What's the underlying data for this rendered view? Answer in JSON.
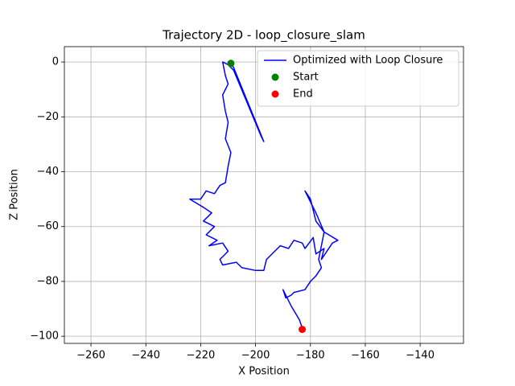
{
  "chart_data": {
    "type": "line",
    "title": "Trajectory 2D - loop_closure_slam",
    "x_label": "X Position",
    "y_label": "Z Position",
    "xlim": [
      -269.7,
      -124.2
    ],
    "ylim": [
      -102.6,
      5.6
    ],
    "xticks": [
      {
        "value": -260,
        "label": "−260"
      },
      {
        "value": -240,
        "label": "−240"
      },
      {
        "value": -220,
        "label": "−220"
      },
      {
        "value": -200,
        "label": "−200"
      },
      {
        "value": -180,
        "label": "−180"
      },
      {
        "value": -160,
        "label": "−160"
      },
      {
        "value": -140,
        "label": "−140"
      }
    ],
    "yticks": [
      0,
      {
        "value": -20,
        "label": "−20"
      },
      {
        "value": -40,
        "label": "−40"
      },
      {
        "value": -60,
        "label": "−60"
      },
      {
        "value": -80,
        "label": "−80"
      },
      {
        "value": -100,
        "label": "−100"
      }
    ],
    "grid": true,
    "legend": "upper right",
    "series": [
      {
        "name": "Optimized with Loop Closure",
        "color": "#0000ff",
        "kind": "line",
        "x": [
          -209,
          -208,
          -197,
          -198,
          -208,
          -210,
          -212,
          -211,
          -210,
          -212,
          -211,
          -210,
          -211,
          -209,
          -210,
          -211,
          -213,
          -215,
          -218,
          -220,
          -224,
          -219,
          -216,
          -219,
          -215,
          -218,
          -214,
          -217,
          -212,
          -210,
          -213,
          -212,
          -207,
          -205,
          -200,
          -197,
          -196,
          -193,
          -191,
          -188,
          -186,
          -183,
          -182,
          -179,
          -178,
          -175,
          -176,
          -172,
          -170,
          -175,
          -178,
          -180,
          -182,
          -178,
          -175,
          -177,
          -176,
          -178,
          -180,
          -182,
          -186,
          -187,
          -189,
          -190,
          -187,
          -184,
          -183
        ],
        "values": [
          -0.5,
          -2,
          -29,
          -27,
          -3,
          -1,
          0,
          -5,
          -8,
          -12,
          -18,
          -22,
          -28,
          -33,
          -38,
          -44,
          -45,
          -48,
          -47,
          -50,
          -50,
          -53,
          -55,
          -58,
          -60,
          -63,
          -65,
          -67,
          -66,
          -69,
          -72,
          -74,
          -73,
          -75,
          -76,
          -76,
          -72,
          -69,
          -67,
          -68,
          -65,
          -66,
          -68,
          -64,
          -70,
          -68,
          -72,
          -66,
          -65,
          -62,
          -58,
          -50,
          -47,
          -55,
          -62,
          -72,
          -75,
          -78,
          -80,
          -83,
          -84,
          -85,
          -86,
          -83,
          -89,
          -94,
          -97
        ]
      },
      {
        "name": "Start",
        "color": "#008000",
        "kind": "scatter",
        "x": [
          -209
        ],
        "values": [
          -0.5
        ]
      },
      {
        "name": "End",
        "color": "#ff0000",
        "kind": "scatter",
        "x": [
          -183
        ],
        "values": [
          -97.5
        ]
      }
    ]
  }
}
